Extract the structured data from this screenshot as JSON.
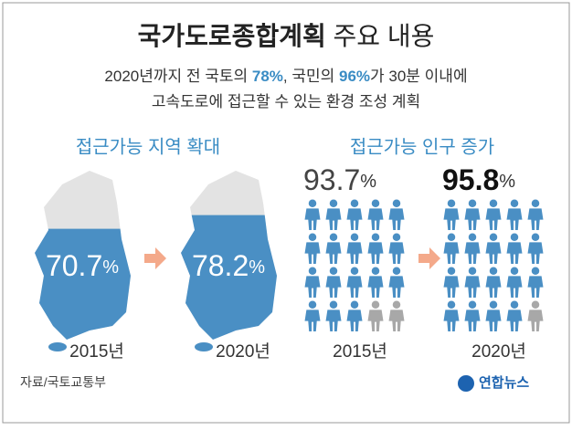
{
  "header": {
    "title_bold": "국가도로종합계획",
    "title_rest": "주요 내용",
    "subtitle": [
      [
        {
          "text": "2020년까지 전 국토의 "
        },
        {
          "text": "78%",
          "hl": true
        },
        {
          "text": ", 국민의 "
        },
        {
          "text": "96%",
          "hl": true
        },
        {
          "text": "가 30분 이내에"
        }
      ],
      [
        {
          "text": "고속도로에 접근할 수 있는 환경 조성 계획"
        }
      ]
    ]
  },
  "area": {
    "heading": "접근가능 지역 확대",
    "panels": [
      {
        "value": 70.7,
        "unit": "%",
        "year": "2015년"
      },
      {
        "value": 78.2,
        "unit": "%",
        "year": "2020년"
      }
    ]
  },
  "population": {
    "heading": "접근가능 인구 증가",
    "panels": [
      {
        "value": 93.7,
        "unit": "%",
        "year": "2015년"
      },
      {
        "value": 95.8,
        "unit": "%",
        "year": "2020년"
      }
    ]
  },
  "footer": {
    "source": "자료/국토교통부",
    "logo": "연합뉴스"
  }
}
